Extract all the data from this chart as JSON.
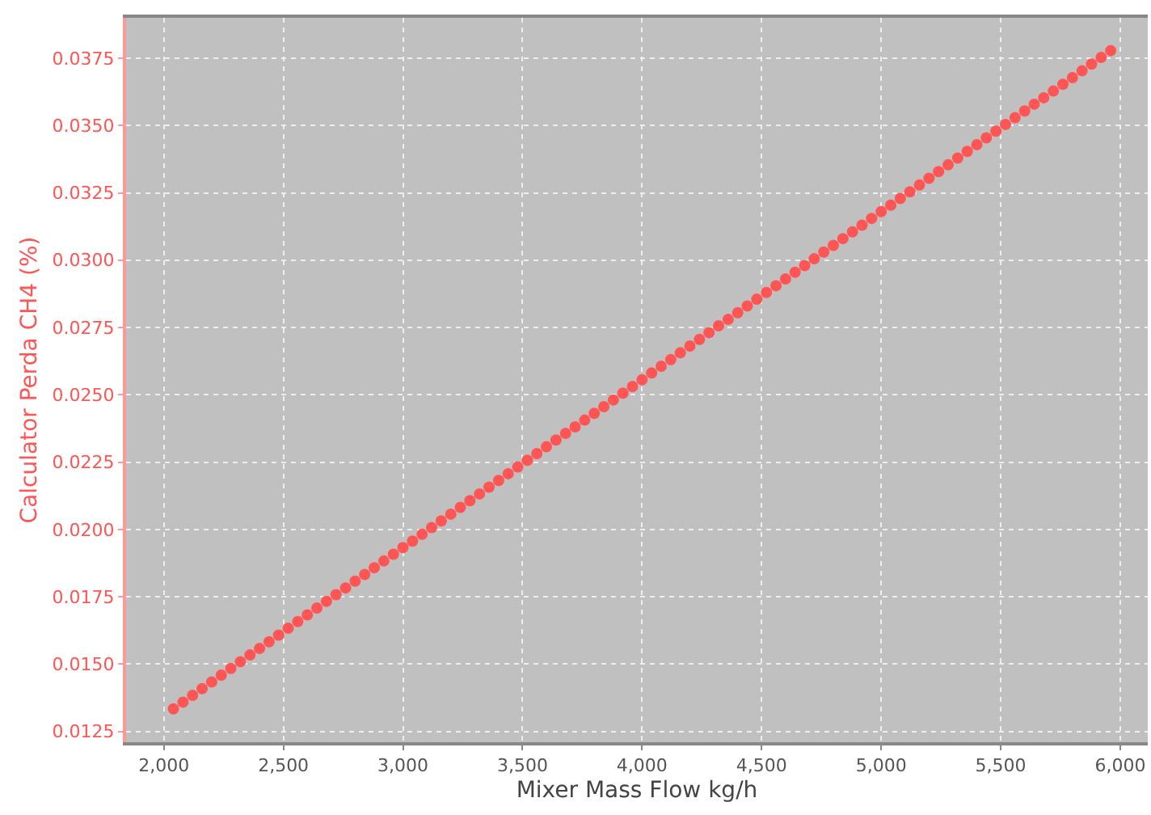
{
  "chart_data": {
    "type": "scatter",
    "xlabel": "Mixer Mass Flow kg/h",
    "ylabel": "Calculator Perda CH4 (%)",
    "x": [
      2040,
      2080,
      2120,
      2160,
      2200,
      2240,
      2280,
      2320,
      2360,
      2400,
      2440,
      2480,
      2520,
      2560,
      2600,
      2640,
      2680,
      2720,
      2760,
      2800,
      2840,
      2880,
      2920,
      2960,
      3000,
      3040,
      3080,
      3120,
      3160,
      3200,
      3240,
      3280,
      3320,
      3360,
      3400,
      3440,
      3480,
      3520,
      3560,
      3600,
      3640,
      3680,
      3720,
      3760,
      3800,
      3840,
      3880,
      3920,
      3960,
      4000,
      4040,
      4080,
      4120,
      4160,
      4200,
      4240,
      4280,
      4320,
      4360,
      4400,
      4440,
      4480,
      4520,
      4560,
      4600,
      4640,
      4680,
      4720,
      4760,
      4800,
      4840,
      4880,
      4920,
      4960,
      5000,
      5040,
      5080,
      5120,
      5160,
      5200,
      5240,
      5280,
      5320,
      5360,
      5400,
      5440,
      5480,
      5520,
      5560,
      5600,
      5640,
      5680,
      5720,
      5760,
      5800,
      5840,
      5880,
      5920,
      5960
    ],
    "series": [
      {
        "color": "#ff5555",
        "values": [
          0.01334,
          0.01359,
          0.01384,
          0.01409,
          0.01434,
          0.01459,
          0.01484,
          0.01509,
          0.01534,
          0.01558,
          0.01583,
          0.01608,
          0.01633,
          0.01658,
          0.01683,
          0.01708,
          0.01733,
          0.01758,
          0.01783,
          0.01808,
          0.01833,
          0.01858,
          0.01883,
          0.01908,
          0.01933,
          0.01957,
          0.01982,
          0.02007,
          0.02032,
          0.02057,
          0.02082,
          0.02107,
          0.02132,
          0.02157,
          0.02182,
          0.02207,
          0.02232,
          0.02257,
          0.02282,
          0.02307,
          0.02332,
          0.02357,
          0.02381,
          0.02406,
          0.02431,
          0.02456,
          0.02481,
          0.02506,
          0.02531,
          0.02556,
          0.02581,
          0.02606,
          0.02631,
          0.02656,
          0.02681,
          0.02706,
          0.02731,
          0.02756,
          0.0278,
          0.02805,
          0.0283,
          0.02855,
          0.0288,
          0.02905,
          0.0293,
          0.02955,
          0.0298,
          0.03005,
          0.0303,
          0.03055,
          0.0308,
          0.03105,
          0.0313,
          0.03155,
          0.0318,
          0.03204,
          0.03229,
          0.03254,
          0.03279,
          0.03304,
          0.03329,
          0.03354,
          0.03379,
          0.03404,
          0.03429,
          0.03454,
          0.03479,
          0.03504,
          0.03529,
          0.03554,
          0.03579,
          0.03603,
          0.03628,
          0.03653,
          0.03678,
          0.03703,
          0.03728,
          0.03753,
          0.03778
        ]
      }
    ],
    "xlim": [
      1842,
      6115
    ],
    "ylim": [
      0.0121,
      0.039
    ],
    "xticks": [
      {
        "value": 2000,
        "label": "2,000"
      },
      {
        "value": 2500,
        "label": "2,500"
      },
      {
        "value": 3000,
        "label": "3,000"
      },
      {
        "value": 3500,
        "label": "3,500"
      },
      {
        "value": 4000,
        "label": "4,000"
      },
      {
        "value": 4500,
        "label": "4,500"
      },
      {
        "value": 5000,
        "label": "5,000"
      },
      {
        "value": 5500,
        "label": "5,500"
      },
      {
        "value": 6000,
        "label": "6,000"
      }
    ],
    "yticks": [
      0.0125,
      {
        "value": 0.015,
        "label": "0.0150"
      },
      0.0175,
      {
        "value": 0.02,
        "label": "0.0200"
      },
      0.0225,
      {
        "value": 0.025,
        "label": "0.0250"
      },
      0.0275,
      {
        "value": 0.03,
        "label": "0.0300"
      },
      0.0325,
      {
        "value": 0.035,
        "label": "0.0350"
      },
      0.0375
    ],
    "grid": true,
    "marker": "circle"
  }
}
